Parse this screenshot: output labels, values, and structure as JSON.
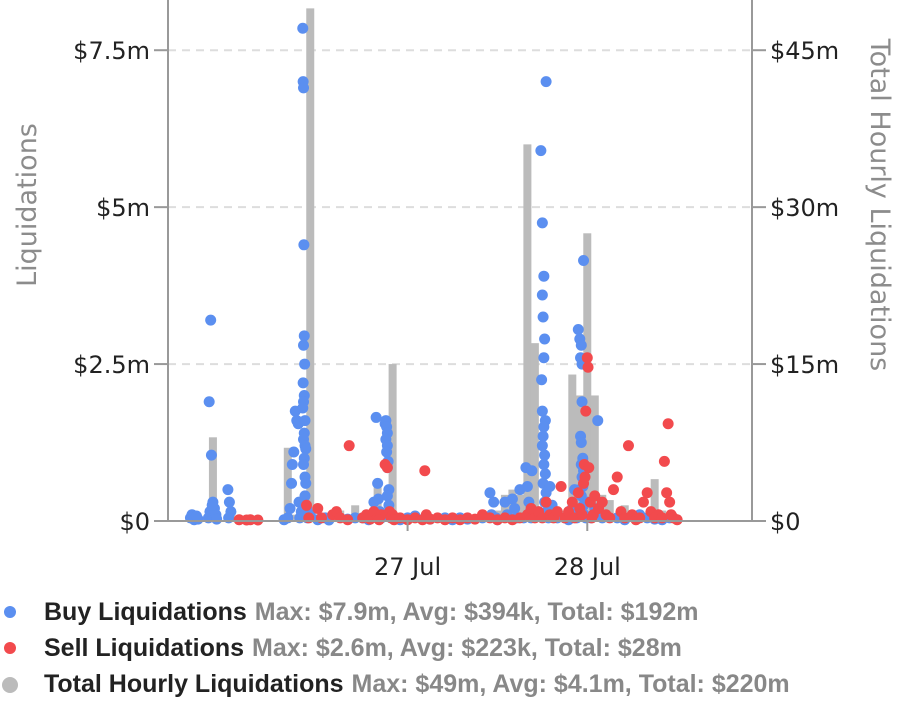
{
  "colors": {
    "buy": "#5b8ff0",
    "sell": "#f24a4d",
    "total": "#bbbbbb",
    "grid": "#dddddd",
    "axis": "#999999"
  },
  "chart_data": {
    "type": "scatter",
    "title": "",
    "ylabel_left": "Liquidations",
    "ylabel_right": "Total Hourly Liquidations",
    "left_ylim": [
      0,
      8.3
    ],
    "right_ylim": [
      0,
      49.8
    ],
    "left_ticks": [
      {
        "value": 0,
        "label": "$0"
      },
      {
        "value": 2.5,
        "label": "$2.5m"
      },
      {
        "value": 5,
        "label": "$5m"
      },
      {
        "value": 7.5,
        "label": "$7.5m"
      }
    ],
    "right_ticks": [
      {
        "value": 0,
        "label": "$0"
      },
      {
        "value": 15,
        "label": "$15m"
      },
      {
        "value": 30,
        "label": "$30m"
      },
      {
        "value": 45,
        "label": "$45m"
      }
    ],
    "x_unit": "hours since 26 Jul 00:00",
    "xlim": [
      -8,
      70
    ],
    "x_ticks": [
      {
        "value": 24,
        "label": "27 Jul"
      },
      {
        "value": 48,
        "label": "28 Jul"
      }
    ],
    "grid": "horizontal dashed",
    "legend_position": "bottom",
    "series": [
      {
        "name": "Total Hourly Liquidations",
        "kind": "bar",
        "x": [
          -5,
          -2,
          1,
          2,
          3,
          4,
          8,
          9,
          10,
          11,
          14,
          15,
          17,
          18,
          19,
          20,
          22,
          26,
          27,
          28,
          29,
          30,
          32,
          35,
          36,
          37,
          38,
          39,
          40,
          41,
          42,
          43,
          44,
          45,
          46,
          47,
          48,
          49,
          50,
          51,
          52,
          53,
          54,
          55,
          56,
          57,
          58,
          59
        ],
        "values": [
          0.5,
          8,
          0.5,
          0.5,
          0.3,
          0.5,
          7,
          0.6,
          0.5,
          49,
          0.8,
          1,
          1.5,
          0.3,
          0.5,
          3.2,
          15,
          0.5,
          0.3,
          0.3,
          0.5,
          0.3,
          0.5,
          0.5,
          1,
          2.5,
          3,
          2.5,
          36,
          17,
          1,
          0.5,
          0.5,
          1,
          14,
          12,
          27.5,
          12,
          2.5,
          2,
          0.5,
          1.5,
          0.5,
          0.8,
          0.5,
          4,
          1,
          0.3
        ]
      },
      {
        "name": "Buy Liquidations",
        "kind": "scatter",
        "points": [
          [
            -5,
            0.05
          ],
          [
            -4.8,
            0.1
          ],
          [
            -4.5,
            0.02
          ],
          [
            -4.2,
            0.08
          ],
          [
            -4,
            0.03
          ],
          [
            -2.5,
            1.9
          ],
          [
            -2.3,
            3.2
          ],
          [
            -2.2,
            1.05
          ],
          [
            -2,
            0.3
          ],
          [
            -1.8,
            0.2
          ],
          [
            -2.6,
            0.05
          ],
          [
            -2.4,
            0.15
          ],
          [
            -1.6,
            0.1
          ],
          [
            -1.5,
            0.03
          ],
          [
            -2.1,
            0.25
          ],
          [
            0,
            0.5
          ],
          [
            0.2,
            0.3
          ],
          [
            0.4,
            0.15
          ],
          [
            0.1,
            0.05
          ],
          [
            7.5,
            0.02
          ],
          [
            8,
            0.05
          ],
          [
            8.3,
            0.2
          ],
          [
            8.6,
            0.9
          ],
          [
            8.8,
            1.1
          ],
          [
            9,
            1.75
          ],
          [
            9.2,
            1.6
          ],
          [
            9.4,
            1.55
          ],
          [
            9.5,
            0.3
          ],
          [
            9.6,
            0.05
          ],
          [
            9.8,
            0.15
          ],
          [
            8.5,
            0.6
          ],
          [
            10,
            7.85
          ],
          [
            10.05,
            7.0
          ],
          [
            10.1,
            6.9
          ],
          [
            10.15,
            4.4
          ],
          [
            10.2,
            2.95
          ],
          [
            10.1,
            2.8
          ],
          [
            10.25,
            2.5
          ],
          [
            10.05,
            2.2
          ],
          [
            10.2,
            2.0
          ],
          [
            10.1,
            1.9
          ],
          [
            10,
            1.8
          ],
          [
            10.3,
            1.6
          ],
          [
            10.2,
            1.4
          ],
          [
            10.1,
            1.3
          ],
          [
            10.3,
            1.2
          ],
          [
            10.4,
            1.15
          ],
          [
            10.2,
            1.0
          ],
          [
            10.1,
            0.9
          ],
          [
            10.3,
            0.7
          ],
          [
            10.4,
            0.6
          ],
          [
            10.3,
            0.4
          ],
          [
            10.5,
            0.2
          ],
          [
            10.6,
            0.05
          ],
          [
            11,
            0.1
          ],
          [
            12,
            0.02
          ],
          [
            13,
            0.05
          ],
          [
            13.5,
            0.01
          ],
          [
            16,
            0.03
          ],
          [
            17,
            0.05
          ],
          [
            18,
            0.05
          ],
          [
            18.8,
            0.02
          ],
          [
            19.2,
            0.05
          ],
          [
            19.5,
            0.3
          ],
          [
            19.8,
            1.65
          ],
          [
            20,
            0.6
          ],
          [
            20.1,
            0.35
          ],
          [
            20.3,
            0.15
          ],
          [
            20.5,
            0.05
          ],
          [
            21,
            1.55
          ],
          [
            21.1,
            1.6
          ],
          [
            21.2,
            1.5
          ],
          [
            21.3,
            1.4
          ],
          [
            21.1,
            1.3
          ],
          [
            21.3,
            1.2
          ],
          [
            21.2,
            1.1
          ],
          [
            21.4,
            0.95
          ],
          [
            21.3,
            0.85
          ],
          [
            21.5,
            0.5
          ],
          [
            21.3,
            0.4
          ],
          [
            21.5,
            0.25
          ],
          [
            21.6,
            0.1
          ],
          [
            21.8,
            0.05
          ],
          [
            23,
            0.02
          ],
          [
            24,
            0.05
          ],
          [
            25,
            0.08
          ],
          [
            27,
            0.03
          ],
          [
            29,
            0.05
          ],
          [
            30,
            0.02
          ],
          [
            31,
            0.05
          ],
          [
            32,
            0.03
          ],
          [
            34,
            0.05
          ],
          [
            35,
            0.45
          ],
          [
            35.5,
            0.3
          ],
          [
            35.2,
            0.1
          ],
          [
            35.8,
            0.05
          ],
          [
            36,
            0.02
          ],
          [
            37,
            0.3
          ],
          [
            37.3,
            0.1
          ],
          [
            38,
            0.35
          ],
          [
            38.3,
            0.2
          ],
          [
            38.6,
            0.05
          ],
          [
            39,
            0.5
          ],
          [
            39.5,
            0.05
          ],
          [
            39.8,
            0.85
          ],
          [
            40,
            0.55
          ],
          [
            40.2,
            0.3
          ],
          [
            40.4,
            0.15
          ],
          [
            40.5,
            0.05
          ],
          [
            40.6,
            0.8
          ],
          [
            41.8,
            5.9
          ],
          [
            42,
            4.75
          ],
          [
            42.2,
            3.9
          ],
          [
            42,
            3.6
          ],
          [
            42.1,
            3.25
          ],
          [
            42.3,
            2.9
          ],
          [
            42.2,
            2.6
          ],
          [
            41.9,
            2.25
          ],
          [
            42,
            1.75
          ],
          [
            42.4,
            1.6
          ],
          [
            42.2,
            1.5
          ],
          [
            42.1,
            1.35
          ],
          [
            42,
            1.2
          ],
          [
            42.3,
            1.05
          ],
          [
            42.2,
            0.9
          ],
          [
            42.4,
            0.75
          ],
          [
            42.1,
            0.6
          ],
          [
            42.5,
            0.45
          ],
          [
            42.3,
            0.3
          ],
          [
            42.6,
            0.15
          ],
          [
            42.8,
            0.05
          ],
          [
            42.5,
            7.0
          ],
          [
            43,
            0.55
          ],
          [
            43.3,
            0.25
          ],
          [
            43.6,
            0.1
          ],
          [
            44,
            0.05
          ],
          [
            45,
            0.05
          ],
          [
            45.5,
            0.02
          ],
          [
            46,
            0.2
          ],
          [
            46.3,
            0.5
          ],
          [
            46.6,
            0.05
          ],
          [
            46.8,
            3.05
          ],
          [
            47,
            2.9
          ],
          [
            47.2,
            2.8
          ],
          [
            47.1,
            2.6
          ],
          [
            47.3,
            2.5
          ],
          [
            47.3,
            1.9
          ],
          [
            47.1,
            1.35
          ],
          [
            47.2,
            1.25
          ],
          [
            47.4,
            1.0
          ],
          [
            47.2,
            0.9
          ],
          [
            47.5,
            0.8
          ],
          [
            47.3,
            0.7
          ],
          [
            47.4,
            0.55
          ],
          [
            47.2,
            0.4
          ],
          [
            47.5,
            0.25
          ],
          [
            47.6,
            0.1
          ],
          [
            47.8,
            0.05
          ],
          [
            47.5,
            4.15
          ],
          [
            48,
            0.3
          ],
          [
            48.5,
            0.05
          ],
          [
            49,
            0.2
          ],
          [
            49.4,
            1.6
          ],
          [
            50,
            0.05
          ],
          [
            52,
            0.05
          ],
          [
            53,
            0.02
          ],
          [
            55,
            0.1
          ],
          [
            56,
            0.05
          ],
          [
            57,
            0.03
          ],
          [
            58,
            0.02
          ],
          [
            59,
            0.05
          ]
        ]
      },
      {
        "name": "Sell Liquidations",
        "kind": "scatter",
        "points": [
          [
            1.5,
            0.02
          ],
          [
            2.5,
            0.01
          ],
          [
            3,
            0.02
          ],
          [
            4,
            0.01
          ],
          [
            10.5,
            0.25
          ],
          [
            10.8,
            0.05
          ],
          [
            12,
            0.2
          ],
          [
            12.5,
            0.05
          ],
          [
            14,
            0.1
          ],
          [
            14.5,
            0.15
          ],
          [
            15,
            0.05
          ],
          [
            16,
            0.02
          ],
          [
            16.2,
            1.2
          ],
          [
            18,
            0.05
          ],
          [
            18.5,
            0.1
          ],
          [
            19,
            0.03
          ],
          [
            19.5,
            0.15
          ],
          [
            20,
            0.05
          ],
          [
            20.5,
            0.1
          ],
          [
            20.2,
            0.02
          ],
          [
            21,
            0.9
          ],
          [
            21.3,
            0.85
          ],
          [
            21.6,
            0.15
          ],
          [
            21.8,
            0.05
          ],
          [
            22,
            0.1
          ],
          [
            22.2,
            0.02
          ],
          [
            23,
            0.05
          ],
          [
            24,
            0.02
          ],
          [
            25,
            0.05
          ],
          [
            26,
            0.02
          ],
          [
            26.3,
            0.8
          ],
          [
            26.5,
            0.1
          ],
          [
            27,
            0.03
          ],
          [
            28,
            0.05
          ],
          [
            29,
            0.02
          ],
          [
            30,
            0.05
          ],
          [
            31,
            0.02
          ],
          [
            32,
            0.05
          ],
          [
            33,
            0.03
          ],
          [
            34,
            0.1
          ],
          [
            35,
            0.05
          ],
          [
            36,
            0.02
          ],
          [
            37,
            0.05
          ],
          [
            38,
            0.02
          ],
          [
            39,
            0.05
          ],
          [
            40,
            0.1
          ],
          [
            40.5,
            0.2
          ],
          [
            41,
            0.05
          ],
          [
            41.5,
            0.15
          ],
          [
            42,
            0.05
          ],
          [
            42.5,
            0.3
          ],
          [
            43,
            0.1
          ],
          [
            43.5,
            0.05
          ],
          [
            44,
            0.15
          ],
          [
            44.5,
            0.55
          ],
          [
            45,
            0.05
          ],
          [
            45.5,
            0.15
          ],
          [
            46,
            0.3
          ],
          [
            46.3,
            0.05
          ],
          [
            46.8,
            0.45
          ],
          [
            47,
            0.2
          ],
          [
            47.3,
            0.1
          ],
          [
            47.5,
            0.6
          ],
          [
            47.6,
            0.9
          ],
          [
            47.8,
            1.75
          ],
          [
            47.7,
            0.7
          ],
          [
            48,
            2.6
          ],
          [
            48.1,
            2.45
          ],
          [
            48.2,
            0.85
          ],
          [
            48.4,
            0.3
          ],
          [
            48.6,
            0.05
          ],
          [
            48.8,
            0.1
          ],
          [
            49,
            0.4
          ],
          [
            49.5,
            0.2
          ],
          [
            50,
            0.3
          ],
          [
            50.5,
            0.1
          ],
          [
            51,
            0.05
          ],
          [
            51.5,
            0.5
          ],
          [
            52,
            0.7
          ],
          [
            52.5,
            0.15
          ],
          [
            53,
            0.05
          ],
          [
            53.5,
            1.2
          ],
          [
            54,
            0.1
          ],
          [
            54.5,
            0.02
          ],
          [
            55,
            0.05
          ],
          [
            55.5,
            0.3
          ],
          [
            56,
            0.45
          ],
          [
            56.5,
            0.15
          ],
          [
            57,
            0.05
          ],
          [
            57.5,
            0.1
          ],
          [
            58,
            0.05
          ],
          [
            58.3,
            0.95
          ],
          [
            58.6,
            0.45
          ],
          [
            58.8,
            1.55
          ],
          [
            59,
            0.3
          ],
          [
            59.2,
            0.1
          ],
          [
            59.5,
            0.05
          ],
          [
            60,
            0.02
          ]
        ]
      }
    ]
  },
  "legend": {
    "items": [
      {
        "name": "Buy Liquidations",
        "stats": "Max: $7.9m, Avg: $394k, Total: $192m"
      },
      {
        "name": "Sell Liquidations",
        "stats": "Max: $2.6m, Avg: $223k, Total: $28m"
      },
      {
        "name": "Total Hourly Liquidations",
        "stats": "Max: $49m, Avg: $4.1m, Total: $220m"
      }
    ]
  }
}
